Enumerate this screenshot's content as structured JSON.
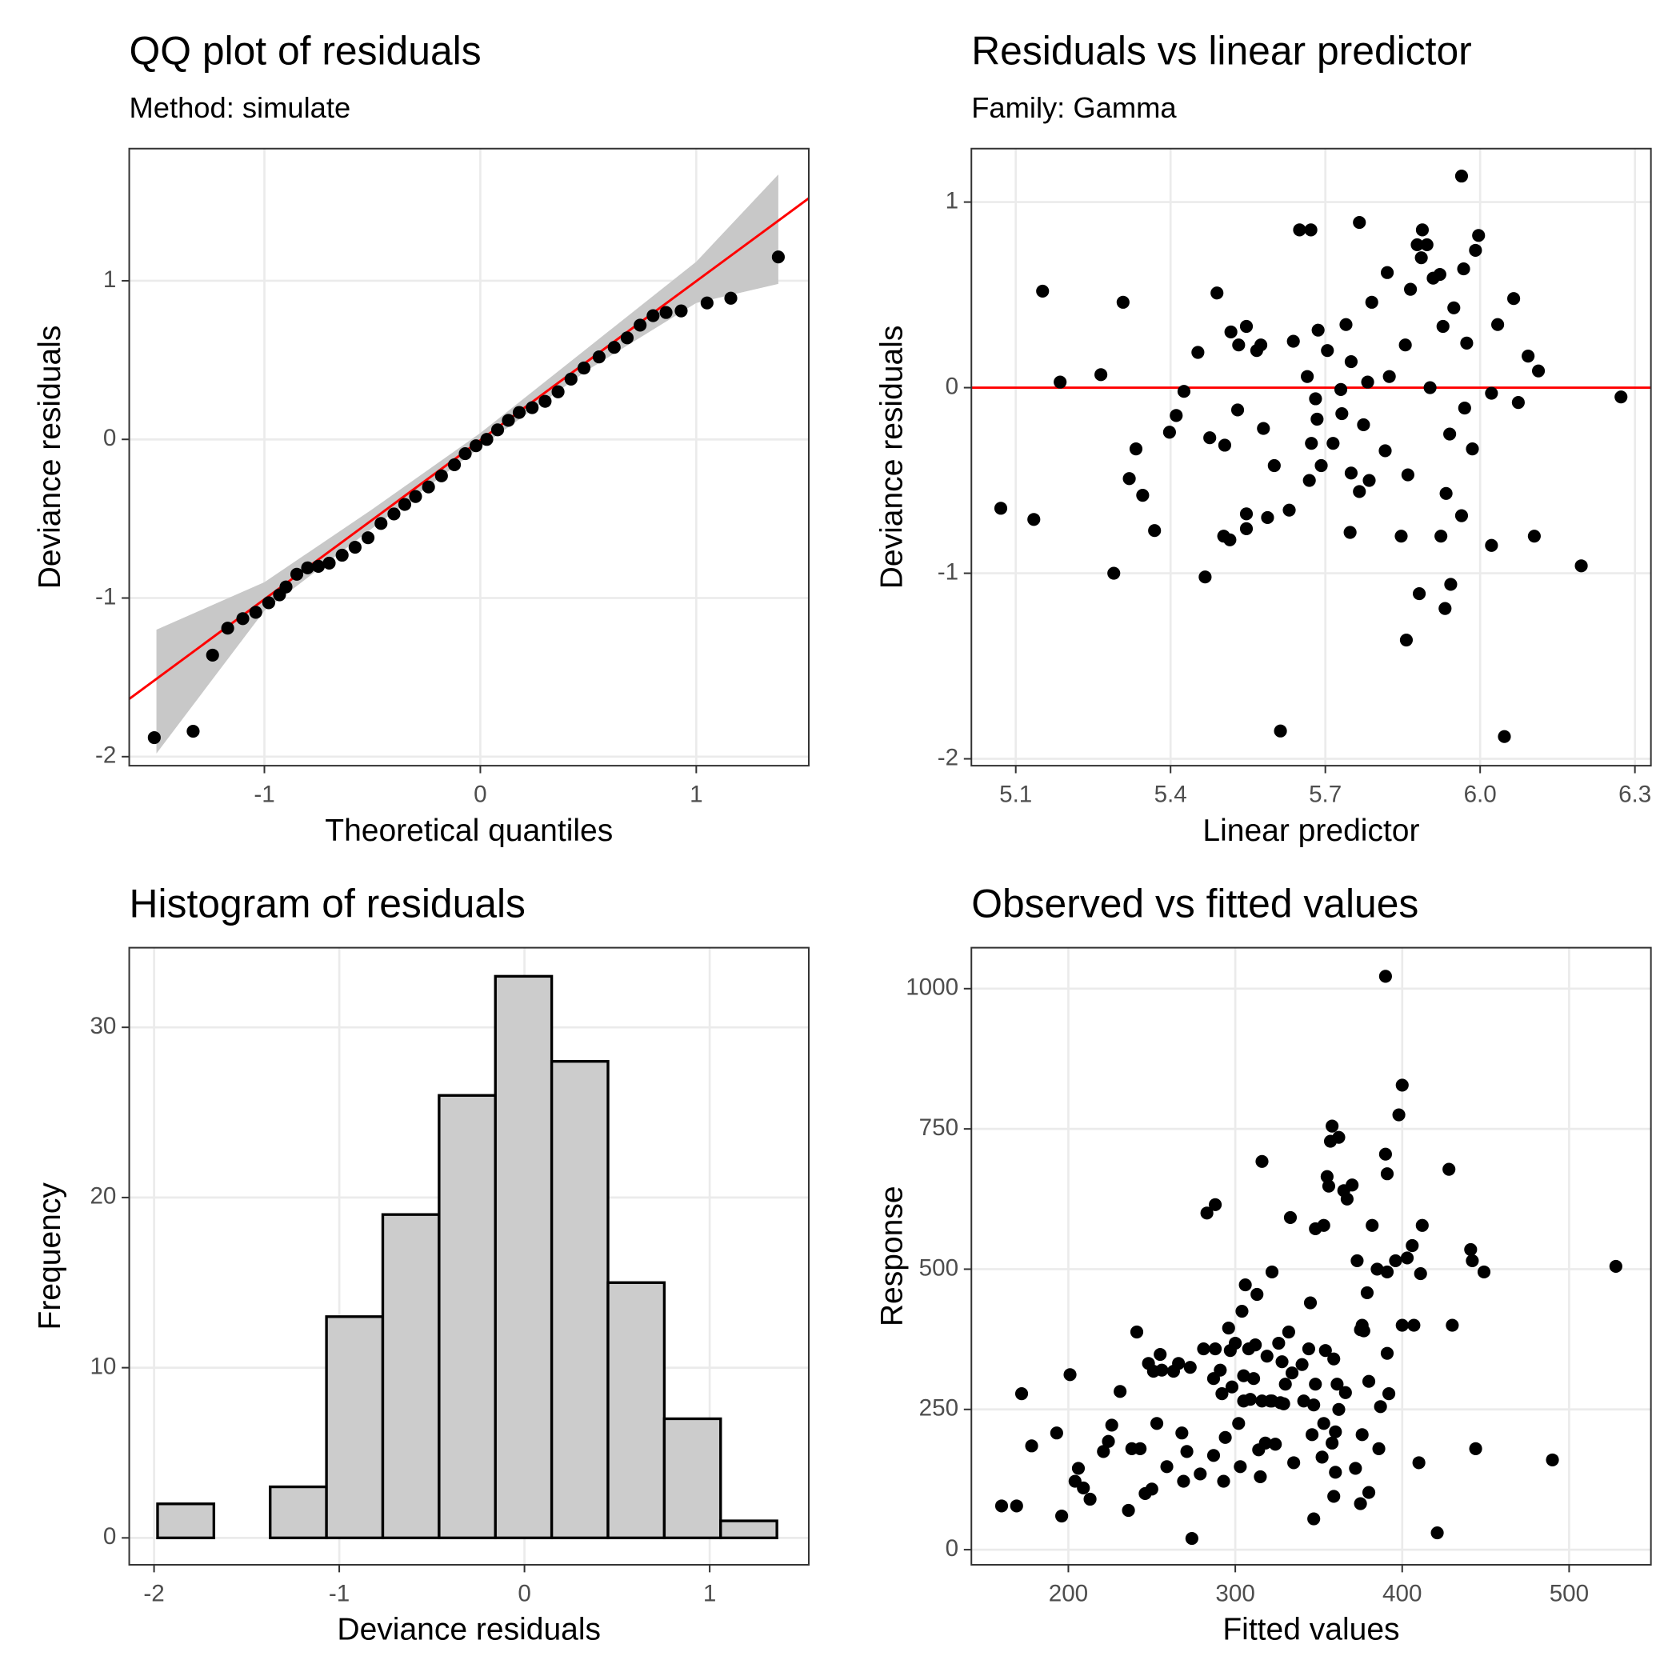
{
  "chart_data": [
    {
      "type": "scatter",
      "title": "QQ plot of residuals",
      "subtitle": "Method: simulate",
      "xlabel": "Theoretical quantiles",
      "ylabel": "Deviance residuals",
      "x": [
        -1.51,
        -1.33,
        -1.24,
        -1.17,
        -1.1,
        -1.04,
        -0.98,
        -0.93,
        -0.9,
        -0.85,
        -0.8,
        -0.75,
        -0.7,
        -0.64,
        -0.58,
        -0.52,
        -0.46,
        -0.4,
        -0.35,
        -0.3,
        -0.24,
        -0.18,
        -0.12,
        -0.07,
        -0.02,
        0.03,
        0.08,
        0.13,
        0.18,
        0.24,
        0.3,
        0.36,
        0.42,
        0.48,
        0.55,
        0.62,
        0.68,
        0.74,
        0.8,
        0.86,
        0.93,
        1.05,
        1.16,
        1.38
      ],
      "values": [
        -1.88,
        -1.84,
        -1.36,
        -1.19,
        -1.13,
        -1.09,
        -1.03,
        -0.98,
        -0.93,
        -0.85,
        -0.81,
        -0.8,
        -0.78,
        -0.73,
        -0.68,
        -0.62,
        -0.53,
        -0.47,
        -0.41,
        -0.36,
        -0.3,
        -0.23,
        -0.16,
        -0.09,
        -0.04,
        0.0,
        0.06,
        0.12,
        0.17,
        0.2,
        0.24,
        0.3,
        0.38,
        0.45,
        0.52,
        0.58,
        0.64,
        0.72,
        0.78,
        0.8,
        0.81,
        0.86,
        0.89,
        1.15
      ],
      "color": "#000000",
      "reference_line": {
        "x": [
          -1.626,
          1.521
        ],
        "y": [
          -1.636,
          1.52
        ],
        "color": "#ff0000"
      },
      "band": {
        "x": [
          -1.5,
          -1.0,
          -0.5,
          0,
          0.5,
          1.0,
          1.38
        ],
        "lower": [
          -1.98,
          -1.08,
          -0.56,
          -0.05,
          0.44,
          0.86,
          0.98
        ],
        "upper": [
          -1.2,
          -0.9,
          -0.44,
          0.04,
          0.58,
          1.12,
          1.67
        ],
        "color": "#c8c8c8"
      },
      "xlim": [
        -1.626,
        1.521
      ],
      "ylim": [
        -2.057,
        1.833
      ],
      "xticks": [
        -1,
        0,
        1
      ],
      "yticks": [
        -2,
        -1,
        0,
        1
      ],
      "grid": true
    },
    {
      "type": "scatter",
      "title": "Residuals vs linear predictor",
      "subtitle": "Family: Gamma",
      "xlabel": "Linear predictor",
      "ylabel": "Deviance residuals",
      "x": [
        5.071,
        5.135,
        5.152,
        5.186,
        5.265,
        5.29,
        5.308,
        5.32,
        5.333,
        5.346,
        5.369,
        5.398,
        5.411,
        5.426,
        5.453,
        5.467,
        5.476,
        5.49,
        5.505,
        5.503,
        5.515,
        5.517,
        5.53,
        5.532,
        5.547,
        5.547,
        5.547,
        5.567,
        5.575,
        5.58,
        5.588,
        5.601,
        5.613,
        5.63,
        5.638,
        5.65,
        5.672,
        5.665,
        5.669,
        5.673,
        5.681,
        5.686,
        5.684,
        5.692,
        5.704,
        5.715,
        5.73,
        5.732,
        5.74,
        5.75,
        5.748,
        5.75,
        5.766,
        5.766,
        5.774,
        5.782,
        5.785,
        5.79,
        5.816,
        5.82,
        5.824,
        5.847,
        5.855,
        5.857,
        5.86,
        5.865,
        5.878,
        5.882,
        5.888,
        5.897,
        5.886,
        5.909,
        5.903,
        5.922,
        5.924,
        5.928,
        5.932,
        5.934,
        5.941,
        5.943,
        5.949,
        5.964,
        5.964,
        5.968,
        5.97,
        5.974,
        5.985,
        5.991,
        5.997,
        6.022,
        6.022,
        6.034,
        6.047,
        6.065,
        6.074,
        6.093,
        6.105,
        6.113,
        6.196,
        6.273
      ],
      "values": [
        -0.65,
        -0.71,
        0.52,
        0.03,
        0.07,
        -1.0,
        0.46,
        -0.49,
        -0.33,
        -0.58,
        -0.77,
        -0.24,
        -0.15,
        -0.02,
        0.19,
        -1.02,
        -0.27,
        0.51,
        -0.31,
        -0.8,
        -0.82,
        0.3,
        -0.12,
        0.23,
        0.33,
        -0.68,
        -0.76,
        0.2,
        0.23,
        -0.22,
        -0.7,
        -0.42,
        -1.85,
        -0.66,
        0.25,
        0.85,
        0.85,
        0.06,
        -0.5,
        -0.3,
        -0.06,
        0.31,
        -0.17,
        -0.42,
        0.2,
        -0.3,
        -0.01,
        -0.14,
        0.34,
        0.14,
        -0.78,
        -0.46,
        0.89,
        -0.56,
        -0.2,
        0.03,
        -0.5,
        0.46,
        -0.34,
        0.62,
        0.06,
        -0.8,
        0.23,
        -1.36,
        -0.47,
        0.53,
        0.77,
        -1.11,
        0.85,
        0.77,
        0.7,
        0.59,
        0.0,
        0.61,
        -0.8,
        0.33,
        -1.19,
        -0.57,
        -0.25,
        -1.06,
        0.43,
        1.14,
        -0.69,
        0.64,
        -0.11,
        0.24,
        -0.33,
        0.74,
        0.82,
        -0.85,
        -0.03,
        0.34,
        -1.88,
        0.48,
        -0.08,
        0.17,
        -0.8,
        0.09,
        -0.96,
        -0.05
      ],
      "color": "#000000",
      "hline": 0,
      "hline_color": "#ff0000",
      "xlim": [
        5.014,
        6.331
      ],
      "ylim": [
        -2.037,
        1.288
      ],
      "xticks": [
        5.1,
        5.4,
        5.7,
        {
          "value": 6,
          "label": "6.0"
        },
        6.3
      ],
      "yticks": [
        -2,
        -1,
        0,
        1
      ],
      "grid": true
    },
    {
      "type": "histogram",
      "title": "Histogram of residuals",
      "xlabel": "Deviance residuals",
      "ylabel": "Frequency",
      "bins": [
        -1.981,
        -1.677,
        -1.373,
        -1.069,
        -0.765,
        -0.461,
        -0.157,
        0.147,
        0.451,
        0.755,
        1.059,
        1.363
      ],
      "values": [
        2,
        0,
        3,
        13,
        19,
        26,
        33,
        28,
        15,
        7,
        1
      ],
      "color": "#cccccc",
      "edgecolor": "#000000",
      "xlim": [
        -2.134,
        1.535
      ],
      "ylim": [
        -1.58,
        34.68
      ],
      "xticks": [
        -2,
        -1,
        0,
        1
      ],
      "yticks": [
        0,
        10,
        20,
        30
      ],
      "grid": true
    },
    {
      "type": "scatter",
      "title": "Observed vs fitted values",
      "xlabel": "Fitted values",
      "ylabel": "Response",
      "x": [
        160,
        169,
        172,
        178,
        193,
        196,
        201,
        204,
        206,
        209,
        213,
        221,
        224,
        226,
        231,
        236,
        238,
        241,
        243,
        246,
        248,
        250,
        251,
        253,
        255,
        256,
        259,
        263,
        266,
        268,
        269,
        271,
        273,
        274,
        279,
        281,
        283,
        287,
        287,
        288,
        288,
        291,
        292,
        293,
        294,
        296,
        297,
        298,
        300,
        302,
        303,
        304,
        305,
        305,
        306,
        308,
        309,
        311,
        312,
        313,
        314,
        315,
        316,
        316,
        318,
        319,
        321,
        322,
        322,
        324,
        326,
        327,
        328,
        329,
        330,
        332,
        333,
        334,
        335,
        340,
        341,
        344,
        345,
        346,
        347,
        347,
        348,
        348,
        352,
        353,
        353,
        354,
        355,
        356,
        357,
        358,
        358,
        359,
        359,
        360,
        360,
        361,
        362,
        362,
        365,
        366,
        367,
        370,
        372,
        373,
        375,
        375,
        376,
        376,
        377,
        379,
        380,
        380,
        382,
        385,
        386,
        387,
        390,
        391,
        391,
        391,
        390,
        392,
        396,
        398,
        400,
        400,
        403,
        406,
        407,
        410,
        411,
        412,
        421,
        428,
        430,
        441,
        442,
        444,
        449,
        490,
        528
      ],
      "values": [
        78,
        78,
        278,
        185,
        208,
        60,
        312,
        122,
        145,
        110,
        90,
        175,
        193,
        222,
        282,
        70,
        180,
        388,
        180,
        100,
        332,
        108,
        318,
        225,
        348,
        320,
        148,
        318,
        332,
        208,
        122,
        175,
        325,
        20,
        135,
        358,
        600,
        305,
        168,
        358,
        615,
        320,
        278,
        122,
        200,
        395,
        355,
        290,
        368,
        225,
        148,
        425,
        310,
        265,
        472,
        358,
        268,
        305,
        365,
        455,
        178,
        130,
        265,
        692,
        190,
        345,
        265,
        495,
        265,
        188,
        368,
        262,
        335,
        260,
        295,
        388,
        592,
        315,
        155,
        330,
        265,
        358,
        440,
        205,
        258,
        55,
        295,
        572,
        165,
        578,
        225,
        355,
        665,
        648,
        728,
        755,
        190,
        340,
        95,
        210,
        138,
        295,
        735,
        250,
        640,
        280,
        625,
        650,
        145,
        515,
        392,
        82,
        400,
        205,
        390,
        458,
        102,
        300,
        578,
        500,
        180,
        255,
        1022,
        495,
        350,
        670,
        705,
        278,
        515,
        775,
        400,
        828,
        520,
        542,
        400,
        155,
        492,
        578,
        30,
        678,
        400,
        535,
        515,
        180,
        495,
        160,
        505
      ],
      "color": "#000000",
      "xlim": [
        141.9,
        549
      ],
      "ylim": [
        -26.9,
        1073
      ],
      "xticks": [
        200,
        300,
        400,
        500
      ],
      "yticks": [
        0,
        250,
        500,
        750,
        1000
      ],
      "grid": true
    }
  ]
}
